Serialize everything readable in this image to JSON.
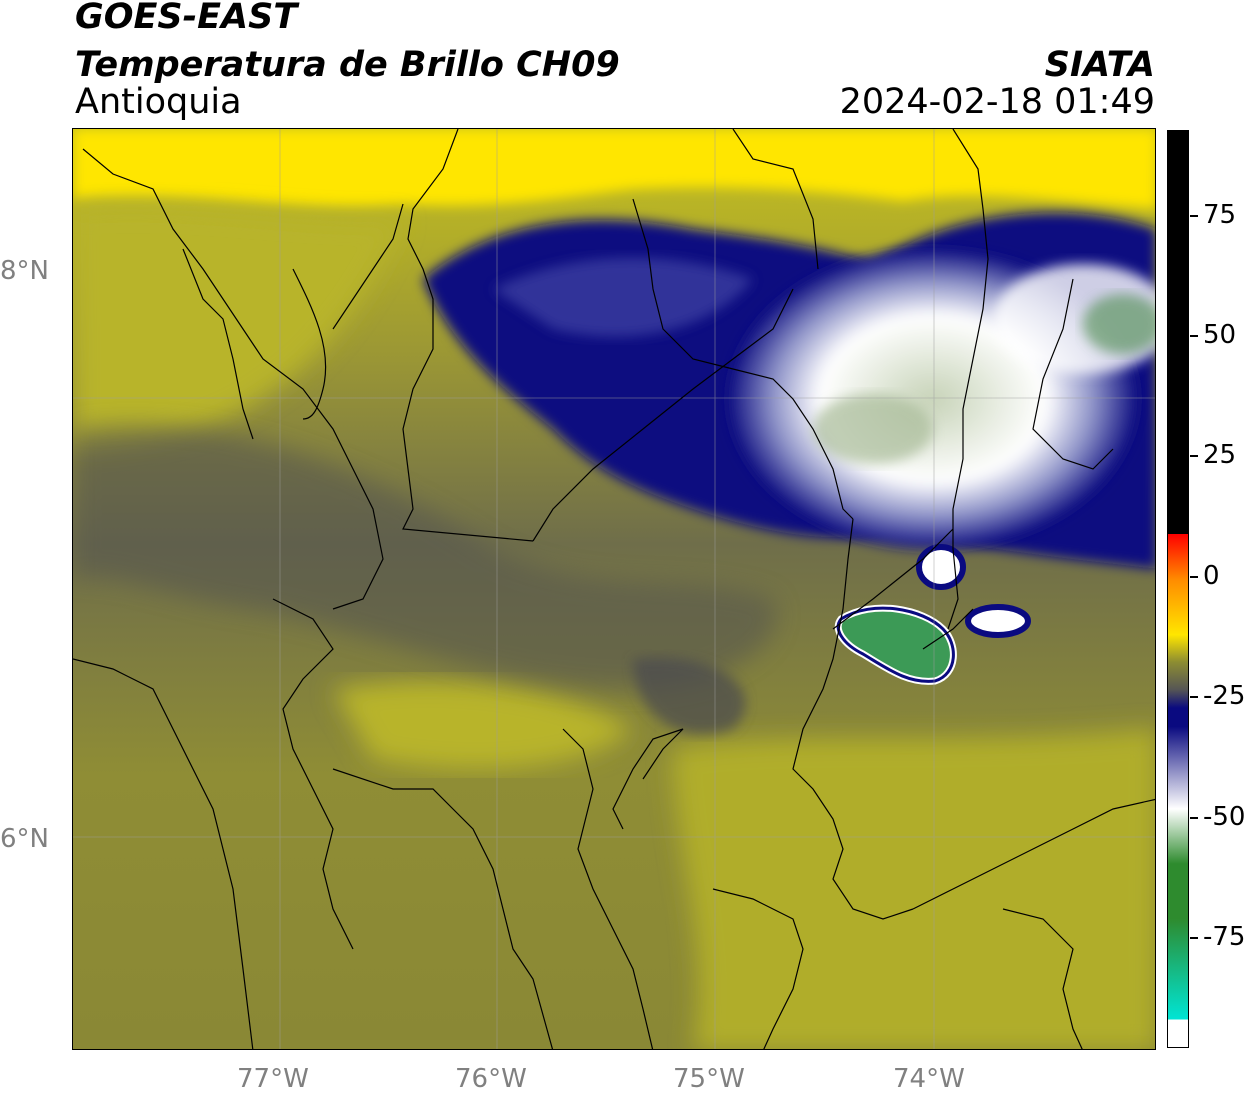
{
  "header": {
    "satellite": "GOES-EAST",
    "product": "Temperatura de Brillo CH09",
    "region": "Antioquia",
    "organization": "SIATA",
    "datetime": "2024-02-18 01:49"
  },
  "axes": {
    "latitude_ticks": [
      "8°N",
      "6°N"
    ],
    "longitude_ticks": [
      "77°W",
      "76°W",
      "75°W",
      "74°W"
    ]
  },
  "colorbar": {
    "ticks": [
      "75",
      "50",
      "25",
      "0",
      "-25",
      "-50",
      "-75"
    ],
    "colors": {
      "black": "#000000",
      "red": "#ff0000",
      "orange": "#ff8c00",
      "yellow": "#ffe600",
      "olive": "#8c8c32",
      "gray": "#555555",
      "navy": "#0a0a80",
      "white": "#ffffff",
      "green": "#2e8b2e",
      "cyan": "#00e5d5"
    }
  },
  "map": {
    "features": [
      "convective-cloud-cluster-northeast",
      "cold-cloud-band-north",
      "small-storm-cells-east",
      "department-borders",
      "coastline"
    ]
  }
}
